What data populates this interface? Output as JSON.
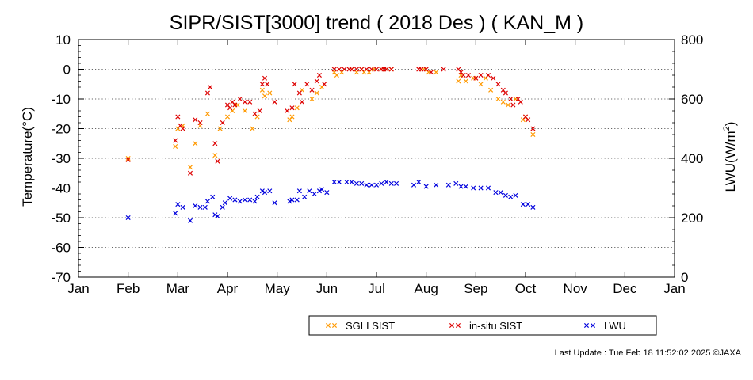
{
  "chart_data": {
    "type": "scatter",
    "title": "SIPR/SIST[3000] trend ( 2018 Des ) ( KAN_M )",
    "ylabel_left": "Temperature(°C)",
    "ylabel_right_main": "LWU(W/m",
    "ylabel_right_sup": "2",
    "ylabel_right_end": ")",
    "ylim_left": [
      -70,
      10
    ],
    "ylim_right": [
      0,
      800
    ],
    "y_ticks_left": [
      "10",
      "0",
      "-10",
      "-20",
      "-30",
      "-40",
      "-50",
      "-60",
      "-70"
    ],
    "y_ticks_right": [
      "800",
      "600",
      "400",
      "200",
      "0"
    ],
    "x_ticks": [
      "Jan",
      "Feb",
      "Mar",
      "Apr",
      "May",
      "Jun",
      "Jul",
      "Aug",
      "Sep",
      "Oct",
      "Nov",
      "Dec",
      "Jan"
    ],
    "grid": "horizontal dotted",
    "legend_placement": "bottom-right",
    "colors": {
      "sgli": "#ff9900",
      "insitu": "#dd0000",
      "lwu": "#0000dd"
    },
    "series": [
      {
        "name": "SGLI SIST",
        "marker": "x",
        "axis": "left",
        "points": [
          [
            1.0,
            -30
          ],
          [
            1.95,
            -26
          ],
          [
            2.0,
            -20
          ],
          [
            2.1,
            -19
          ],
          [
            2.25,
            -33
          ],
          [
            2.35,
            -25
          ],
          [
            2.45,
            -19
          ],
          [
            2.6,
            -15
          ],
          [
            2.75,
            -29
          ],
          [
            2.85,
            -20
          ],
          [
            3.0,
            -16
          ],
          [
            3.1,
            -14
          ],
          [
            3.2,
            -12
          ],
          [
            3.35,
            -14
          ],
          [
            3.5,
            -20
          ],
          [
            3.6,
            -16
          ],
          [
            3.7,
            -7
          ],
          [
            3.75,
            -9
          ],
          [
            3.85,
            -8
          ],
          [
            4.25,
            -17
          ],
          [
            4.3,
            -16
          ],
          [
            4.4,
            -13
          ],
          [
            4.5,
            -7
          ],
          [
            4.7,
            -10
          ],
          [
            4.8,
            -8
          ],
          [
            4.9,
            -6
          ],
          [
            5.15,
            -1
          ],
          [
            5.2,
            -2
          ],
          [
            5.3,
            -1
          ],
          [
            5.5,
            0
          ],
          [
            5.6,
            -1
          ],
          [
            5.7,
            0
          ],
          [
            5.75,
            -1
          ],
          [
            5.85,
            -1
          ],
          [
            5.95,
            0
          ],
          [
            6.1,
            0
          ],
          [
            6.2,
            0
          ],
          [
            6.3,
            0
          ],
          [
            6.95,
            0
          ],
          [
            7.05,
            -1
          ],
          [
            7.2,
            -1
          ],
          [
            7.65,
            -4
          ],
          [
            7.7,
            -2
          ],
          [
            7.8,
            -4
          ],
          [
            7.95,
            -3
          ],
          [
            8.1,
            -5
          ],
          [
            8.2,
            -3
          ],
          [
            8.3,
            -7
          ],
          [
            8.45,
            -10
          ],
          [
            8.55,
            -11
          ],
          [
            8.65,
            -12
          ],
          [
            8.8,
            -10
          ],
          [
            8.95,
            -17
          ],
          [
            9.0,
            -16
          ],
          [
            9.15,
            -22
          ]
        ]
      },
      {
        "name": "in-situ SIST",
        "marker": "x",
        "axis": "left",
        "points": [
          [
            1.0,
            -30.5
          ],
          [
            1.95,
            -24
          ],
          [
            2.0,
            -16
          ],
          [
            2.05,
            -19
          ],
          [
            2.1,
            -20
          ],
          [
            2.25,
            -35
          ],
          [
            2.35,
            -17
          ],
          [
            2.45,
            -18
          ],
          [
            2.6,
            -8
          ],
          [
            2.65,
            -6
          ],
          [
            2.75,
            -25
          ],
          [
            2.8,
            -31
          ],
          [
            2.9,
            -18
          ],
          [
            3.0,
            -12
          ],
          [
            3.05,
            -13
          ],
          [
            3.1,
            -11
          ],
          [
            3.15,
            -12
          ],
          [
            3.25,
            -10
          ],
          [
            3.35,
            -11
          ],
          [
            3.45,
            -11
          ],
          [
            3.55,
            -15
          ],
          [
            3.65,
            -14
          ],
          [
            3.7,
            -5
          ],
          [
            3.75,
            -3
          ],
          [
            3.8,
            -5
          ],
          [
            3.95,
            -11
          ],
          [
            4.2,
            -14
          ],
          [
            4.3,
            -13
          ],
          [
            4.35,
            -5
          ],
          [
            4.45,
            -8
          ],
          [
            4.5,
            -11
          ],
          [
            4.6,
            -5
          ],
          [
            4.7,
            -7
          ],
          [
            4.8,
            -4
          ],
          [
            4.85,
            -2
          ],
          [
            4.95,
            -5
          ],
          [
            5.15,
            0
          ],
          [
            5.25,
            0
          ],
          [
            5.35,
            0
          ],
          [
            5.45,
            0
          ],
          [
            5.5,
            0
          ],
          [
            5.6,
            0
          ],
          [
            5.7,
            0
          ],
          [
            5.8,
            0
          ],
          [
            5.9,
            0
          ],
          [
            6.0,
            0
          ],
          [
            6.1,
            0
          ],
          [
            6.15,
            0
          ],
          [
            6.2,
            0
          ],
          [
            6.3,
            0
          ],
          [
            6.85,
            0
          ],
          [
            6.9,
            0
          ],
          [
            7.0,
            0
          ],
          [
            7.1,
            -1
          ],
          [
            7.35,
            0
          ],
          [
            7.65,
            0
          ],
          [
            7.7,
            -1
          ],
          [
            7.75,
            -2
          ],
          [
            7.85,
            -2
          ],
          [
            8.0,
            -3
          ],
          [
            8.1,
            -2
          ],
          [
            8.25,
            -2
          ],
          [
            8.35,
            -3
          ],
          [
            8.45,
            -5
          ],
          [
            8.55,
            -7
          ],
          [
            8.6,
            -8
          ],
          [
            8.7,
            -10
          ],
          [
            8.75,
            -12
          ],
          [
            8.85,
            -10
          ],
          [
            8.9,
            -11
          ],
          [
            9.0,
            -16
          ],
          [
            9.05,
            -17
          ],
          [
            9.15,
            -20
          ]
        ]
      },
      {
        "name": "LWU",
        "marker": "x",
        "axis": "right",
        "points": [
          [
            1.0,
            200
          ],
          [
            1.95,
            215
          ],
          [
            2.0,
            245
          ],
          [
            2.1,
            235
          ],
          [
            2.25,
            190
          ],
          [
            2.35,
            240
          ],
          [
            2.45,
            235
          ],
          [
            2.55,
            235
          ],
          [
            2.6,
            255
          ],
          [
            2.7,
            270
          ],
          [
            2.75,
            210
          ],
          [
            2.8,
            205
          ],
          [
            2.9,
            235
          ],
          [
            2.95,
            250
          ],
          [
            3.05,
            265
          ],
          [
            3.15,
            260
          ],
          [
            3.25,
            255
          ],
          [
            3.35,
            260
          ],
          [
            3.45,
            260
          ],
          [
            3.55,
            255
          ],
          [
            3.6,
            270
          ],
          [
            3.7,
            290
          ],
          [
            3.75,
            285
          ],
          [
            3.85,
            290
          ],
          [
            3.95,
            250
          ],
          [
            4.25,
            255
          ],
          [
            4.3,
            260
          ],
          [
            4.4,
            260
          ],
          [
            4.45,
            290
          ],
          [
            4.55,
            270
          ],
          [
            4.65,
            290
          ],
          [
            4.75,
            280
          ],
          [
            4.85,
            290
          ],
          [
            4.9,
            295
          ],
          [
            5.0,
            285
          ],
          [
            5.15,
            320
          ],
          [
            5.25,
            320
          ],
          [
            5.4,
            320
          ],
          [
            5.5,
            320
          ],
          [
            5.6,
            315
          ],
          [
            5.7,
            315
          ],
          [
            5.8,
            310
          ],
          [
            5.9,
            310
          ],
          [
            6.0,
            310
          ],
          [
            6.1,
            315
          ],
          [
            6.2,
            320
          ],
          [
            6.3,
            315
          ],
          [
            6.4,
            315
          ],
          [
            6.75,
            310
          ],
          [
            6.85,
            320
          ],
          [
            7.0,
            305
          ],
          [
            7.2,
            310
          ],
          [
            7.45,
            310
          ],
          [
            7.6,
            315
          ],
          [
            7.7,
            305
          ],
          [
            7.8,
            305
          ],
          [
            7.95,
            300
          ],
          [
            8.1,
            300
          ],
          [
            8.25,
            300
          ],
          [
            8.4,
            285
          ],
          [
            8.5,
            285
          ],
          [
            8.6,
            275
          ],
          [
            8.7,
            270
          ],
          [
            8.8,
            275
          ],
          [
            8.95,
            245
          ],
          [
            9.05,
            245
          ],
          [
            9.15,
            235
          ]
        ]
      }
    ]
  },
  "legend": {
    "items": [
      "SGLI SIST",
      "in-situ SIST",
      "LWU"
    ]
  },
  "footer": "Last Update : Tue Feb 18 11:52:02 2025  ©JAXA"
}
